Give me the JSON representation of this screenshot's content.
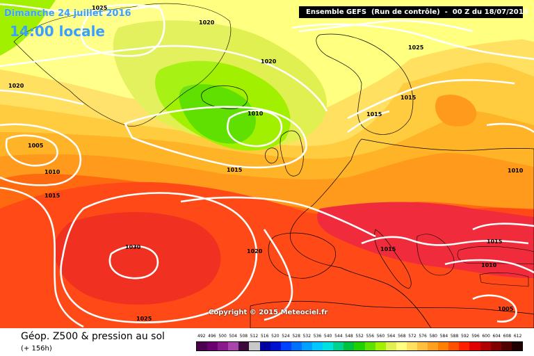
{
  "map": {
    "date_label": "Dimanche 24 juillet 2016",
    "time_label": "14:00 locale",
    "header": "Ensemble GEFS  (Run de contrôle)  -  00 Z du 18/07/2016",
    "copyright": "Copyright © 2015 Meteociel.fr",
    "footer_title": "Géop. Z500 & pression au sol",
    "footer_sub": "(+ 156h)"
  },
  "isobars": [
    {
      "value": "1020",
      "id": "iso-1020-top"
    },
    {
      "value": "1025",
      "id": "iso-1025-greenland"
    },
    {
      "value": "1020",
      "id": "iso-1020-iceland"
    },
    {
      "value": "1025",
      "id": "iso-1025-scandinavia"
    },
    {
      "value": "1020",
      "id": "iso-1020-west"
    },
    {
      "value": "1015",
      "id": "iso-1015-norway"
    },
    {
      "value": "1015",
      "id": "iso-1015-north-sea"
    },
    {
      "value": "1010",
      "id": "iso-1010-iceland-low"
    },
    {
      "value": "1005",
      "id": "iso-1005-atlantic"
    },
    {
      "value": "1010",
      "id": "iso-1010-atlantic"
    },
    {
      "value": "1015",
      "id": "iso-1015-uk"
    },
    {
      "value": "1015",
      "id": "iso-1015-atlantic"
    },
    {
      "value": "1010",
      "id": "iso-1010-russia"
    },
    {
      "value": "1030",
      "id": "iso-1030-azores"
    },
    {
      "value": "1020",
      "id": "iso-1020-biscay"
    },
    {
      "value": "1015",
      "id": "iso-1015-italy"
    },
    {
      "value": "1015",
      "id": "iso-1015-turkey"
    },
    {
      "value": "1010",
      "id": "iso-1010-black-sea"
    },
    {
      "value": "1025",
      "id": "iso-1025-south"
    },
    {
      "value": "1005",
      "id": "iso-1005-east-med"
    }
  ],
  "legend": {
    "labels": [
      "492",
      "496",
      "500",
      "504",
      "508",
      "512",
      "516",
      "520",
      "524",
      "528",
      "532",
      "536",
      "540",
      "544",
      "548",
      "552",
      "556",
      "560",
      "564",
      "568",
      "572",
      "576",
      "580",
      "584",
      "588",
      "592",
      "596",
      "600",
      "604",
      "608",
      "612"
    ],
    "colors": [
      "#4b0050",
      "#6a006e",
      "#8a1a8c",
      "#a844aa",
      "#3a0a3a",
      "#c8c8c8",
      "#0000a0",
      "#0010d0",
      "#0040ff",
      "#0070ff",
      "#00a0ff",
      "#00c8ff",
      "#00e0e0",
      "#00d090",
      "#00c040",
      "#20d000",
      "#60e000",
      "#a0f000",
      "#e0f050",
      "#ffff80",
      "#ffe060",
      "#ffc040",
      "#ffa020",
      "#ff8000",
      "#ff5000",
      "#ff2000",
      "#e00000",
      "#b00000",
      "#800000",
      "#500000",
      "#200000"
    ]
  },
  "colors": {
    "header_bg": "#000000",
    "date_text": "#3aa0ff",
    "isobar": "#ffffff"
  }
}
